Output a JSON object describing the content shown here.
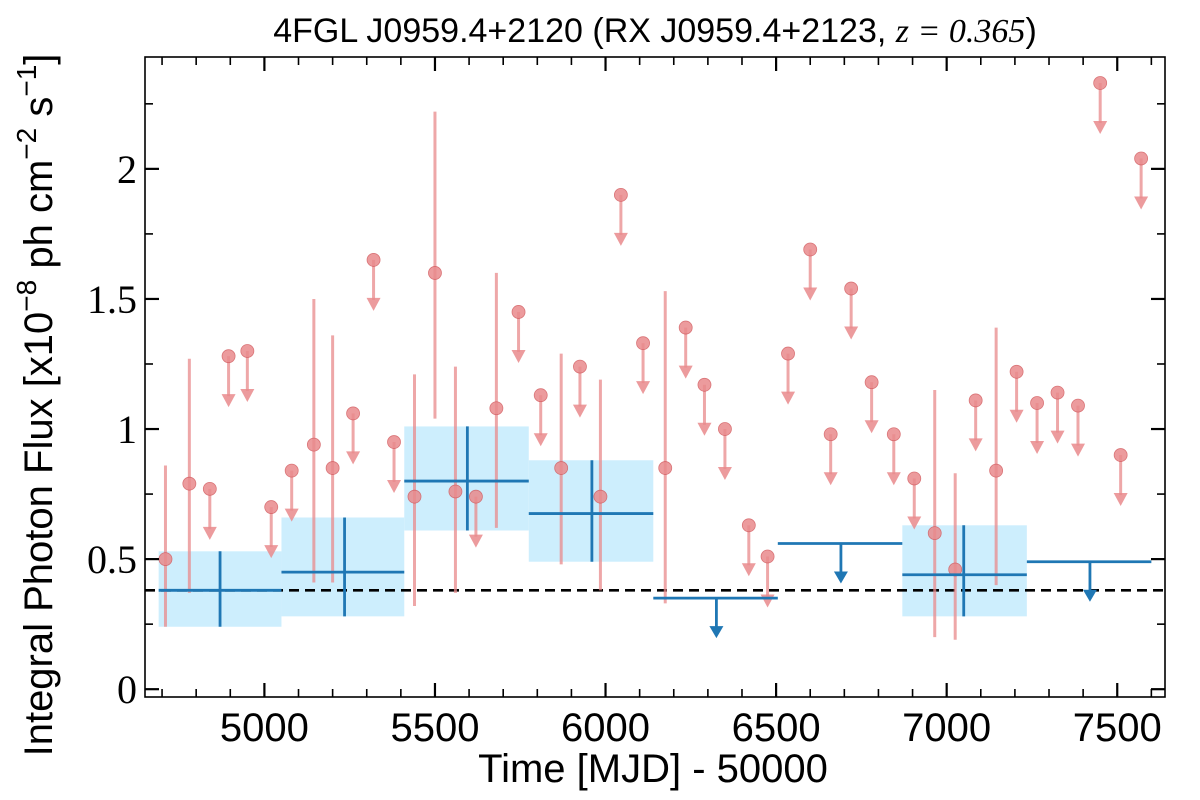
{
  "chart_data": {
    "type": "scatter",
    "title": {
      "text_main": "4FGL J0959.4+2120 (RX J0959.4+2123, ",
      "text_math": "z = 0.365",
      "text_end": ")"
    },
    "xlabel": "Time [MJD] - 50000",
    "ylabel": {
      "prefix": "Integral Photon Flux [x10",
      "exp1": "−8",
      "middle": " ph cm",
      "exp2": "−2",
      "s": " s",
      "exp3": "−1",
      "suffix": "]"
    },
    "xlim": [
      4650,
      7640
    ],
    "ylim": [
      -0.03,
      2.43
    ],
    "x_ticks": [
      5000,
      5500,
      6000,
      6500,
      7000,
      7500
    ],
    "x_tick_labels": [
      "5000",
      "5500",
      "6000",
      "6500",
      "7000",
      "7500"
    ],
    "y_ticks": [
      0,
      0.5,
      1,
      1.5,
      2
    ],
    "y_tick_labels": [
      "0",
      "0.5",
      "1",
      "1.5",
      "2"
    ],
    "colors": {
      "fine_points": "#e98a8c",
      "fine_points_edge": "#d45d61",
      "coarse_bins": "#1f77b4",
      "coarse_band": "#cdeefd",
      "reference_line": "#000000"
    },
    "reference_line": {
      "y": 0.38,
      "style": "dashed"
    },
    "fine_detections": [
      {
        "x": 4710,
        "y": 0.5,
        "lo": 0.24,
        "hi": 0.86
      },
      {
        "x": 4780,
        "y": 0.79,
        "lo": 0.37,
        "hi": 1.27
      },
      {
        "x": 5145,
        "y": 0.94,
        "lo": 0.41,
        "hi": 1.5
      },
      {
        "x": 5200,
        "y": 0.85,
        "lo": 0.41,
        "hi": 1.36
      },
      {
        "x": 5440,
        "y": 0.74,
        "lo": 0.32,
        "hi": 1.21
      },
      {
        "x": 5500,
        "y": 1.6,
        "lo": 1.04,
        "hi": 2.22
      },
      {
        "x": 5560,
        "y": 0.76,
        "lo": 0.37,
        "hi": 1.24
      },
      {
        "x": 5680,
        "y": 1.08,
        "lo": 0.62,
        "hi": 1.6
      },
      {
        "x": 5870,
        "y": 0.85,
        "lo": 0.48,
        "hi": 1.29
      },
      {
        "x": 5985,
        "y": 0.74,
        "lo": 0.38,
        "hi": 1.19
      },
      {
        "x": 6175,
        "y": 0.85,
        "lo": 0.33,
        "hi": 1.53
      },
      {
        "x": 6965,
        "y": 0.6,
        "lo": 0.2,
        "hi": 1.15
      },
      {
        "x": 7025,
        "y": 0.46,
        "lo": 0.19,
        "hi": 0.83
      },
      {
        "x": 7145,
        "y": 0.84,
        "lo": 0.4,
        "hi": 1.39
      }
    ],
    "fine_upper_limits": [
      {
        "x": 4840,
        "y": 0.77
      },
      {
        "x": 4895,
        "y": 1.28
      },
      {
        "x": 4950,
        "y": 1.3
      },
      {
        "x": 5020,
        "y": 0.7
      },
      {
        "x": 5080,
        "y": 0.84
      },
      {
        "x": 5260,
        "y": 1.06
      },
      {
        "x": 5320,
        "y": 1.65
      },
      {
        "x": 5380,
        "y": 0.95
      },
      {
        "x": 5620,
        "y": 0.74
      },
      {
        "x": 5745,
        "y": 1.45
      },
      {
        "x": 5810,
        "y": 1.13
      },
      {
        "x": 5925,
        "y": 1.24
      },
      {
        "x": 6045,
        "y": 1.9
      },
      {
        "x": 6110,
        "y": 1.33
      },
      {
        "x": 6235,
        "y": 1.39
      },
      {
        "x": 6290,
        "y": 1.17
      },
      {
        "x": 6350,
        "y": 1.0
      },
      {
        "x": 6420,
        "y": 0.63
      },
      {
        "x": 6475,
        "y": 0.51
      },
      {
        "x": 6535,
        "y": 1.29
      },
      {
        "x": 6600,
        "y": 1.69
      },
      {
        "x": 6660,
        "y": 0.98
      },
      {
        "x": 6720,
        "y": 1.54
      },
      {
        "x": 6780,
        "y": 1.18
      },
      {
        "x": 6845,
        "y": 0.98
      },
      {
        "x": 6905,
        "y": 0.81
      },
      {
        "x": 7085,
        "y": 1.11
      },
      {
        "x": 7205,
        "y": 1.22
      },
      {
        "x": 7265,
        "y": 1.1
      },
      {
        "x": 7325,
        "y": 1.14
      },
      {
        "x": 7385,
        "y": 1.09
      },
      {
        "x": 7510,
        "y": 0.9
      },
      {
        "x": 7450,
        "y": 2.33
      },
      {
        "x": 7570,
        "y": 2.04
      }
    ],
    "coarse_detections": [
      {
        "x": 4870,
        "x0": 4690,
        "x1": 5050,
        "y": 0.38,
        "lo": 0.24,
        "hi": 0.53
      },
      {
        "x": 5235,
        "x0": 5050,
        "x1": 5410,
        "y": 0.45,
        "lo": 0.28,
        "hi": 0.66
      },
      {
        "x": 5595,
        "x0": 5410,
        "x1": 5775,
        "y": 0.8,
        "lo": 0.61,
        "hi": 1.01
      },
      {
        "x": 5960,
        "x0": 5775,
        "x1": 6140,
        "y": 0.675,
        "lo": 0.49,
        "hi": 0.88
      },
      {
        "x": 7050,
        "x0": 6870,
        "x1": 7235,
        "y": 0.44,
        "lo": 0.28,
        "hi": 0.63
      }
    ],
    "coarse_upper_limits": [
      {
        "x": 6325,
        "x0": 6140,
        "x1": 6505,
        "y": 0.35
      },
      {
        "x": 6690,
        "x0": 6505,
        "x1": 6870,
        "y": 0.56
      },
      {
        "x": 7420,
        "x0": 7235,
        "x1": 7600,
        "y": 0.49
      }
    ]
  }
}
